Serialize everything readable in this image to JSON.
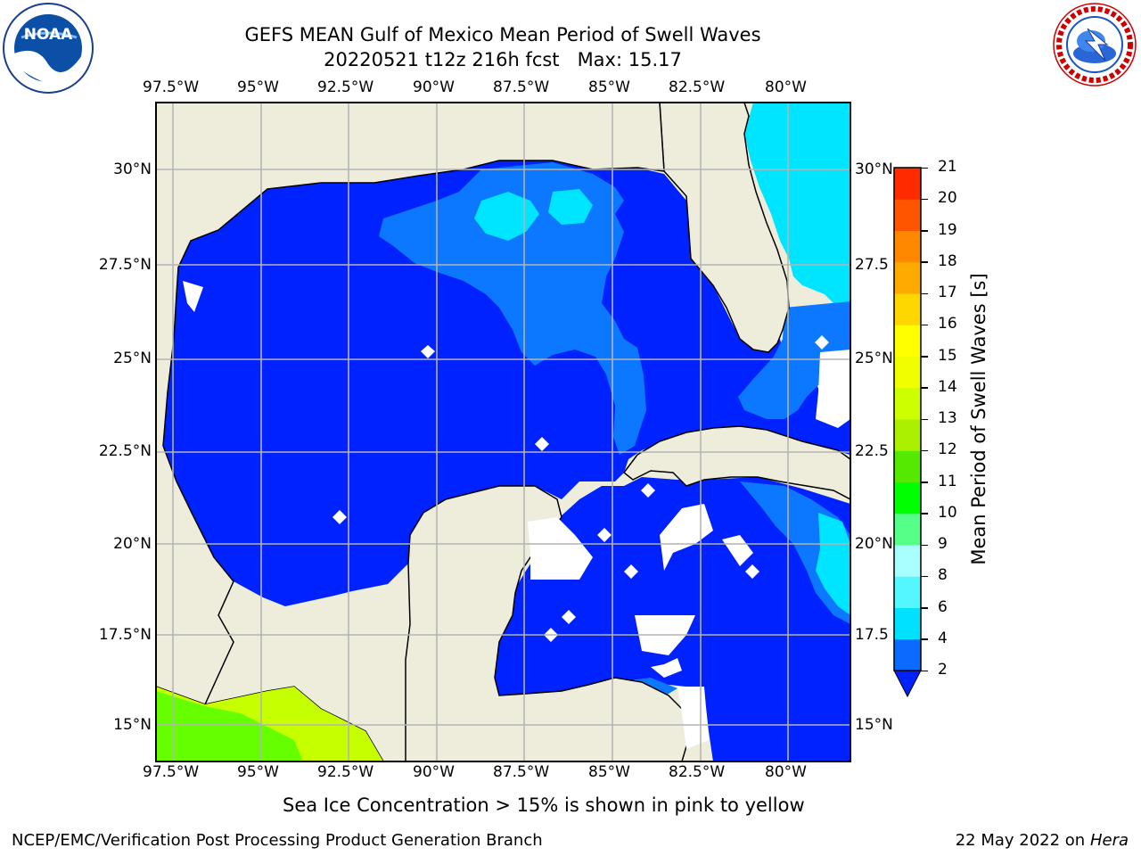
{
  "header": {
    "title_line1": "GEFS MEAN Gulf of Mexico Mean Period of Swell Waves",
    "title_line2": "20220521 t12z 216h fcst   Max: 15.17"
  },
  "logos": {
    "noaa_text": "NOAA",
    "nws_text": "NATIONAL WEATHER SERVICE"
  },
  "map": {
    "lon_labels": [
      "97.5°W",
      "95°W",
      "92.5°W",
      "90°W",
      "87.5°W",
      "85°W",
      "82.5°W",
      "80°W"
    ],
    "lat_labels_left": [
      "30°N",
      "27.5°N",
      "25°N",
      "22.5°N",
      "20°N",
      "17.5°N",
      "15°N"
    ],
    "lat_labels_right": [
      "30°N",
      "27.5",
      "25°N",
      "22.5",
      "20°N",
      "17.5",
      "15°N"
    ],
    "colors": {
      "land": "#eeeddc",
      "ocean_base": "#0022ff",
      "swell_2_4": "#0b78ff",
      "swell_4_6": "#00e5ff",
      "swell_12_13": "#c6ff00",
      "swell_11_12": "#66ff00",
      "coast": "#000000",
      "grid": "#b4b4b4"
    }
  },
  "colorbar": {
    "label": "Mean Period of Swell Waves [s]",
    "ticks": [
      "2",
      "4",
      "6",
      "8",
      "9",
      "10",
      "11",
      "12",
      "13",
      "14",
      "15",
      "16",
      "17",
      "18",
      "19",
      "20",
      "21"
    ],
    "bands": [
      "#0b6aff",
      "#00e0ff",
      "#55f7ff",
      "#a9ffff",
      "#55ff88",
      "#00ff00",
      "#55e800",
      "#aaf000",
      "#ccff00",
      "#f0ff00",
      "#ffff00",
      "#ffd700",
      "#ffaa00",
      "#ff8800",
      "#ff5500",
      "#ff2a00",
      "#ff0000"
    ],
    "extend_color": "#0022ff"
  },
  "footer": {
    "sea_ice_note": "Sea Ice Concentration > 15% is shown in pink to yellow",
    "branch": "NCEP/EMC/Verification Post Processing Product Generation Branch",
    "date": "22 May 2022 on",
    "machine": "Hera"
  }
}
